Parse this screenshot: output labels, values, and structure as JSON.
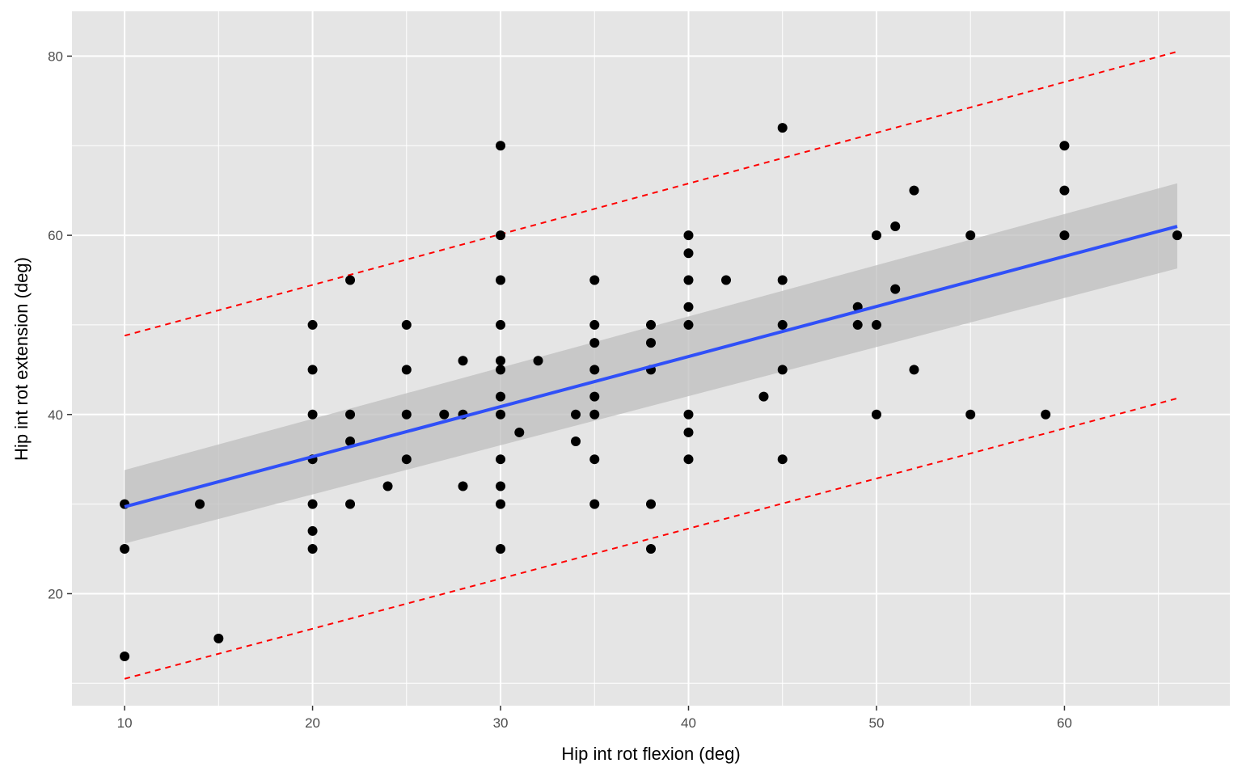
{
  "chart_data": {
    "type": "scatter",
    "xlabel": "Hip int rot flexion (deg)",
    "ylabel": "Hip int rot extension (deg)",
    "xlim": [
      7.2,
      68.8
    ],
    "ylim": [
      7.5,
      85.0
    ],
    "x_ticks": [
      10,
      20,
      30,
      40,
      50,
      60
    ],
    "y_ticks": [
      20,
      40,
      60,
      80
    ],
    "grid": true,
    "legend": "none",
    "colors": {
      "panel": "#e5e5e5",
      "grid": "#ffffff",
      "points": "#000000",
      "fit_line": "#3050f8",
      "confidence_band": "#bdbdbd",
      "prediction_interval": "#ff0000"
    },
    "points": [
      [
        10,
        30
      ],
      [
        10,
        25
      ],
      [
        10,
        13
      ],
      [
        14,
        30
      ],
      [
        15,
        15
      ],
      [
        20,
        50
      ],
      [
        20,
        45
      ],
      [
        20,
        40
      ],
      [
        20,
        35
      ],
      [
        20,
        30
      ],
      [
        20,
        27
      ],
      [
        20,
        25
      ],
      [
        22,
        55
      ],
      [
        22,
        40
      ],
      [
        22,
        37
      ],
      [
        22,
        30
      ],
      [
        24,
        32
      ],
      [
        25,
        50
      ],
      [
        25,
        45
      ],
      [
        25,
        40
      ],
      [
        25,
        35
      ],
      [
        27,
        40
      ],
      [
        28,
        46
      ],
      [
        28,
        40
      ],
      [
        28,
        32
      ],
      [
        30,
        70
      ],
      [
        30,
        60
      ],
      [
        30,
        55
      ],
      [
        30,
        50
      ],
      [
        30,
        46
      ],
      [
        30,
        45
      ],
      [
        30,
        42
      ],
      [
        30,
        40
      ],
      [
        30,
        35
      ],
      [
        30,
        32
      ],
      [
        30,
        30
      ],
      [
        30,
        25
      ],
      [
        31,
        38
      ],
      [
        32,
        46
      ],
      [
        34,
        40
      ],
      [
        34,
        37
      ],
      [
        35,
        55
      ],
      [
        35,
        50
      ],
      [
        35,
        48
      ],
      [
        35,
        45
      ],
      [
        35,
        42
      ],
      [
        35,
        40
      ],
      [
        35,
        35
      ],
      [
        35,
        30
      ],
      [
        38,
        50
      ],
      [
        38,
        48
      ],
      [
        38,
        45
      ],
      [
        38,
        30
      ],
      [
        38,
        25
      ],
      [
        40,
        60
      ],
      [
        40,
        58
      ],
      [
        40,
        55
      ],
      [
        40,
        52
      ],
      [
        40,
        50
      ],
      [
        40,
        40
      ],
      [
        40,
        38
      ],
      [
        40,
        35
      ],
      [
        42,
        55
      ],
      [
        44,
        42
      ],
      [
        45,
        72
      ],
      [
        45,
        55
      ],
      [
        45,
        50
      ],
      [
        45,
        45
      ],
      [
        45,
        35
      ],
      [
        49,
        52
      ],
      [
        49,
        50
      ],
      [
        50,
        60
      ],
      [
        50,
        50
      ],
      [
        50,
        40
      ],
      [
        51,
        61
      ],
      [
        51,
        54
      ],
      [
        52,
        65
      ],
      [
        52,
        45
      ],
      [
        55,
        60
      ],
      [
        55,
        40
      ],
      [
        59,
        40
      ],
      [
        60,
        70
      ],
      [
        60,
        65
      ],
      [
        60,
        60
      ],
      [
        66,
        60
      ]
    ],
    "fit_line": {
      "x": [
        10,
        66
      ],
      "y": [
        29.7,
        61.0
      ]
    },
    "confidence_band": {
      "x": [
        10,
        66
      ],
      "lower": [
        25.6,
        56.3
      ],
      "upper": [
        33.8,
        65.8
      ]
    },
    "prediction_interval": {
      "x": [
        10,
        66
      ],
      "lower": [
        10.5,
        41.8
      ],
      "upper": [
        48.8,
        80.5
      ]
    }
  }
}
